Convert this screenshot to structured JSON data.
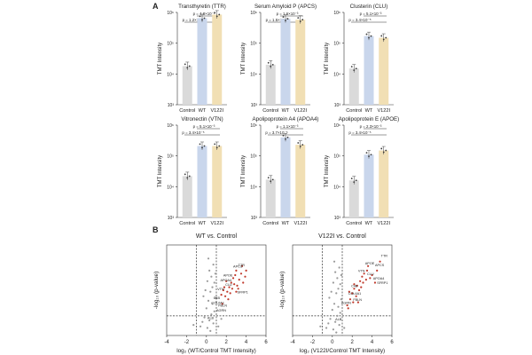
{
  "panel_a_label": "A",
  "panel_b_label": "B",
  "colors": {
    "control": "#dadada",
    "wt": "#c9d6ec",
    "v122i": "#f1dfb4",
    "dot": "#3a3a3a",
    "sig": "#c0392b",
    "nonsig": "#9a9a9a"
  },
  "chart_data": [
    {
      "type": "bar",
      "title": "Transthyretin (TTR)",
      "categories": [
        "Control",
        "WT",
        "V122I"
      ],
      "values": [
        18000.0,
        650000.0,
        850000.0
      ],
      "ylabel": "TMT Intensity",
      "ylim": [
        1000.0,
        1000000.0
      ],
      "yticks": [
        "10³",
        "10⁴",
        "10⁵",
        "10⁶"
      ],
      "pvalues": [
        "p = 4.8×10⁻³",
        "p = 1.2×10⁻³"
      ]
    },
    {
      "type": "bar",
      "title": "Serum Amyloid P (APCS)",
      "categories": [
        "Control",
        "WT",
        "V122I"
      ],
      "values": [
        20000.0,
        620000.0,
        580000.0
      ],
      "ylabel": "TMT Intensity",
      "ylim": [
        1000.0,
        1000000.0
      ],
      "yticks": [
        "10³",
        "10⁴",
        "10⁵",
        "10⁶"
      ],
      "pvalues": [
        "p = 1.6×10⁻³",
        "p = 1.5×10⁻³"
      ]
    },
    {
      "type": "bar",
      "title": "Clusterin (CLU)",
      "categories": [
        "Control",
        "WT",
        "V122I"
      ],
      "values": [
        15000.0,
        170000.0,
        150000.0
      ],
      "ylabel": "TMT Intensity",
      "ylim": [
        1000.0,
        1000000.0
      ],
      "yticks": [
        "10³",
        "10⁴",
        "10⁵",
        "10⁶"
      ],
      "pvalues": [
        "p = 5.1×10⁻³",
        "p = 3.4×10⁻⁵"
      ]
    },
    {
      "type": "bar",
      "title": "Vitronectin (VTN)",
      "categories": [
        "Control",
        "WT",
        "V122I"
      ],
      "values": [
        22000.0,
        210000.0,
        210000.0
      ],
      "ylabel": "TMT Intensity",
      "ylim": [
        1000.0,
        1000000.0
      ],
      "yticks": [
        "10³",
        "10⁴",
        "10⁵",
        "10⁶"
      ],
      "pvalues": [
        "p = 5.1×10⁻³",
        "p = 3.4×10⁻⁵"
      ]
    },
    {
      "type": "bar",
      "title": "Apolipoprotein A4 (APOA4)",
      "categories": [
        "Control",
        "WT",
        "V122I"
      ],
      "values": [
        17000.0,
        400000.0,
        230000.0
      ],
      "ylabel": "TMT Intensity",
      "ylim": [
        1000.0,
        1000000.0
      ],
      "yticks": [
        "10³",
        "10⁴",
        "10⁵",
        "10⁶"
      ],
      "pvalues": [
        "p = 1.1×10⁻³",
        "p = 3.7×10⁻⁵"
      ]
    },
    {
      "type": "bar",
      "title": "Apolipoprotein E (APOE)",
      "categories": [
        "Control",
        "WT",
        "V122I"
      ],
      "values": [
        16000.0,
        110000.0,
        150000.0
      ],
      "ylabel": "TMT Intensity",
      "ylim": [
        1000.0,
        1000000.0
      ],
      "yticks": [
        "10³",
        "10⁴",
        "10⁵",
        "10⁶"
      ],
      "pvalues": [
        "p = 2.3×10⁻³",
        "p = 3.4×10⁻⁵"
      ]
    },
    {
      "type": "scatter",
      "title": "WT vs. Control",
      "xlabel": "log₂ (WT/Control TMT Intensity)",
      "ylabel": "-log₁₀ (p-value)",
      "xlim": [
        -4,
        6
      ],
      "ylim": [
        0,
        6
      ],
      "xticks": [
        -4,
        -2,
        0,
        2,
        4,
        6
      ],
      "thresholds": {
        "fold_change": [
          -1,
          1
        ],
        "p": 1.3
      },
      "nonsig_points": [
        [
          -0.4,
          0.9
        ],
        [
          -0.2,
          1.2
        ],
        [
          0.1,
          0.5
        ],
        [
          0.3,
          1.0
        ],
        [
          0.5,
          1.4
        ],
        [
          0.0,
          1.8
        ],
        [
          0.2,
          2.3
        ],
        [
          -0.3,
          2.6
        ],
        [
          0.4,
          2.9
        ],
        [
          0.6,
          3.2
        ],
        [
          0.1,
          3.6
        ],
        [
          0.5,
          3.9
        ],
        [
          0.3,
          4.3
        ],
        [
          0.7,
          4.7
        ],
        [
          0.2,
          5.1
        ],
        [
          0.6,
          2.1
        ],
        [
          -0.1,
          3.0
        ],
        [
          0.8,
          3.5
        ],
        [
          0.9,
          2.5
        ],
        [
          0.4,
          0.3
        ],
        [
          0.7,
          0.8
        ],
        [
          -0.6,
          0.6
        ],
        [
          0.8,
          1.6
        ],
        [
          0.9,
          4.1
        ],
        [
          1.2,
          0.6
        ],
        [
          1.5,
          1.1
        ],
        [
          -1.3,
          0.7
        ]
      ],
      "sig_points": [
        [
          1.6,
          2.1
        ],
        [
          1.9,
          2.6
        ],
        [
          2.1,
          2.9
        ],
        [
          2.3,
          3.2
        ],
        [
          2.5,
          3.5
        ],
        [
          2.7,
          3.8
        ],
        [
          2.9,
          4.0
        ],
        [
          3.1,
          3.3
        ],
        [
          3.3,
          3.7
        ],
        [
          3.5,
          4.1
        ],
        [
          3.7,
          3.5
        ],
        [
          3.9,
          3.9
        ],
        [
          2.2,
          2.4
        ],
        [
          2.4,
          2.8
        ],
        [
          2.6,
          3.1
        ],
        [
          2.8,
          3.4
        ],
        [
          3.0,
          2.9
        ],
        [
          3.2,
          3.1
        ],
        [
          1.8,
          3.2
        ],
        [
          2.0,
          3.6
        ],
        [
          1.5,
          2.7
        ],
        [
          1.7,
          3.0
        ],
        [
          4.0,
          4.3
        ],
        [
          3.6,
          4.6
        ],
        [
          3.0,
          4.3
        ]
      ],
      "labels": [
        {
          "text": "APCS",
          "x": 2.7,
          "y": 4.5
        },
        {
          "text": "TTR",
          "x": 3.2,
          "y": 4.6
        },
        {
          "text": "APOE",
          "x": 1.7,
          "y": 3.9
        },
        {
          "text": "APOA4",
          "x": 1.4,
          "y": 3.6
        },
        {
          "text": "CLU",
          "x": 1.9,
          "y": 3.3
        },
        {
          "text": "VTN",
          "x": 1.1,
          "y": 3.0
        },
        {
          "text": "SFRP1",
          "x": 3.1,
          "y": 2.8
        },
        {
          "text": "C4B",
          "x": 0.7,
          "y": 2.4
        },
        {
          "text": "COL6A1",
          "x": 0.5,
          "y": 2.1
        },
        {
          "text": "FBLN",
          "x": 1.2,
          "y": 1.9
        },
        {
          "text": "AGRN",
          "x": 1.0,
          "y": 1.6
        },
        {
          "text": "ALB",
          "x": 0.1,
          "y": 1.1
        }
      ]
    },
    {
      "type": "scatter",
      "title": "V122I vs. Control",
      "xlabel": "log₂ (V122I/Control TMT Intensity)",
      "ylabel": "-log₁₀ (p-value)",
      "xlim": [
        -4,
        6
      ],
      "ylim": [
        0,
        6
      ],
      "xticks": [
        -4,
        -2,
        0,
        2,
        4,
        6
      ],
      "thresholds": {
        "fold_change": [
          -1,
          1
        ],
        "p": 1.3
      },
      "nonsig_points": [
        [
          -0.4,
          0.8
        ],
        [
          -0.2,
          1.1
        ],
        [
          0.1,
          0.4
        ],
        [
          0.3,
          0.9
        ],
        [
          0.5,
          1.3
        ],
        [
          0.0,
          1.7
        ],
        [
          0.2,
          2.1
        ],
        [
          -0.3,
          2.5
        ],
        [
          0.4,
          2.8
        ],
        [
          0.6,
          3.1
        ],
        [
          0.1,
          3.5
        ],
        [
          0.5,
          3.8
        ],
        [
          0.3,
          4.2
        ],
        [
          0.7,
          4.5
        ],
        [
          0.2,
          4.9
        ],
        [
          0.6,
          1.9
        ],
        [
          -0.1,
          2.9
        ],
        [
          0.8,
          3.4
        ],
        [
          0.9,
          2.4
        ],
        [
          0.4,
          0.2
        ],
        [
          0.7,
          0.7
        ],
        [
          -0.6,
          0.5
        ],
        [
          0.8,
          1.5
        ],
        [
          0.9,
          4.0
        ],
        [
          1.2,
          0.5
        ],
        [
          -1.2,
          0.6
        ]
      ],
      "sig_points": [
        [
          1.5,
          2.0
        ],
        [
          1.8,
          2.4
        ],
        [
          2.0,
          2.8
        ],
        [
          2.2,
          3.1
        ],
        [
          2.5,
          3.3
        ],
        [
          2.8,
          3.6
        ],
        [
          3.0,
          3.9
        ],
        [
          3.2,
          4.1
        ],
        [
          3.5,
          4.3
        ],
        [
          3.8,
          3.8
        ],
        [
          4.0,
          4.0
        ],
        [
          4.3,
          3.5
        ],
        [
          2.1,
          2.2
        ],
        [
          2.4,
          2.6
        ],
        [
          2.7,
          3.0
        ],
        [
          2.9,
          3.2
        ],
        [
          3.1,
          3.5
        ],
        [
          3.4,
          3.7
        ],
        [
          1.7,
          2.9
        ],
        [
          2.2,
          3.4
        ],
        [
          3.6,
          4.6
        ],
        [
          4.5,
          4.3
        ],
        [
          4.8,
          4.9
        ],
        [
          1.6,
          1.8
        ],
        [
          2.6,
          2.2
        ]
      ],
      "labels": [
        {
          "text": "TTR",
          "x": 4.9,
          "y": 5.2
        },
        {
          "text": "APCS",
          "x": 4.3,
          "y": 4.6
        },
        {
          "text": "APOE",
          "x": 3.3,
          "y": 4.7
        },
        {
          "text": "VTN",
          "x": 2.6,
          "y": 4.2
        },
        {
          "text": "CLU",
          "x": 3.5,
          "y": 4.0
        },
        {
          "text": "APOA4",
          "x": 4.1,
          "y": 3.7
        },
        {
          "text": "SFRP1",
          "x": 4.5,
          "y": 3.4
        },
        {
          "text": "C4B",
          "x": 1.9,
          "y": 3.2
        },
        {
          "text": "COL6A1",
          "x": 1.6,
          "y": 2.7
        },
        {
          "text": "FBLN",
          "x": 2.1,
          "y": 2.3
        },
        {
          "text": "AGRN",
          "x": 0.9,
          "y": 2.1
        },
        {
          "text": "ALB",
          "x": 0.3,
          "y": 1.0
        }
      ]
    }
  ]
}
